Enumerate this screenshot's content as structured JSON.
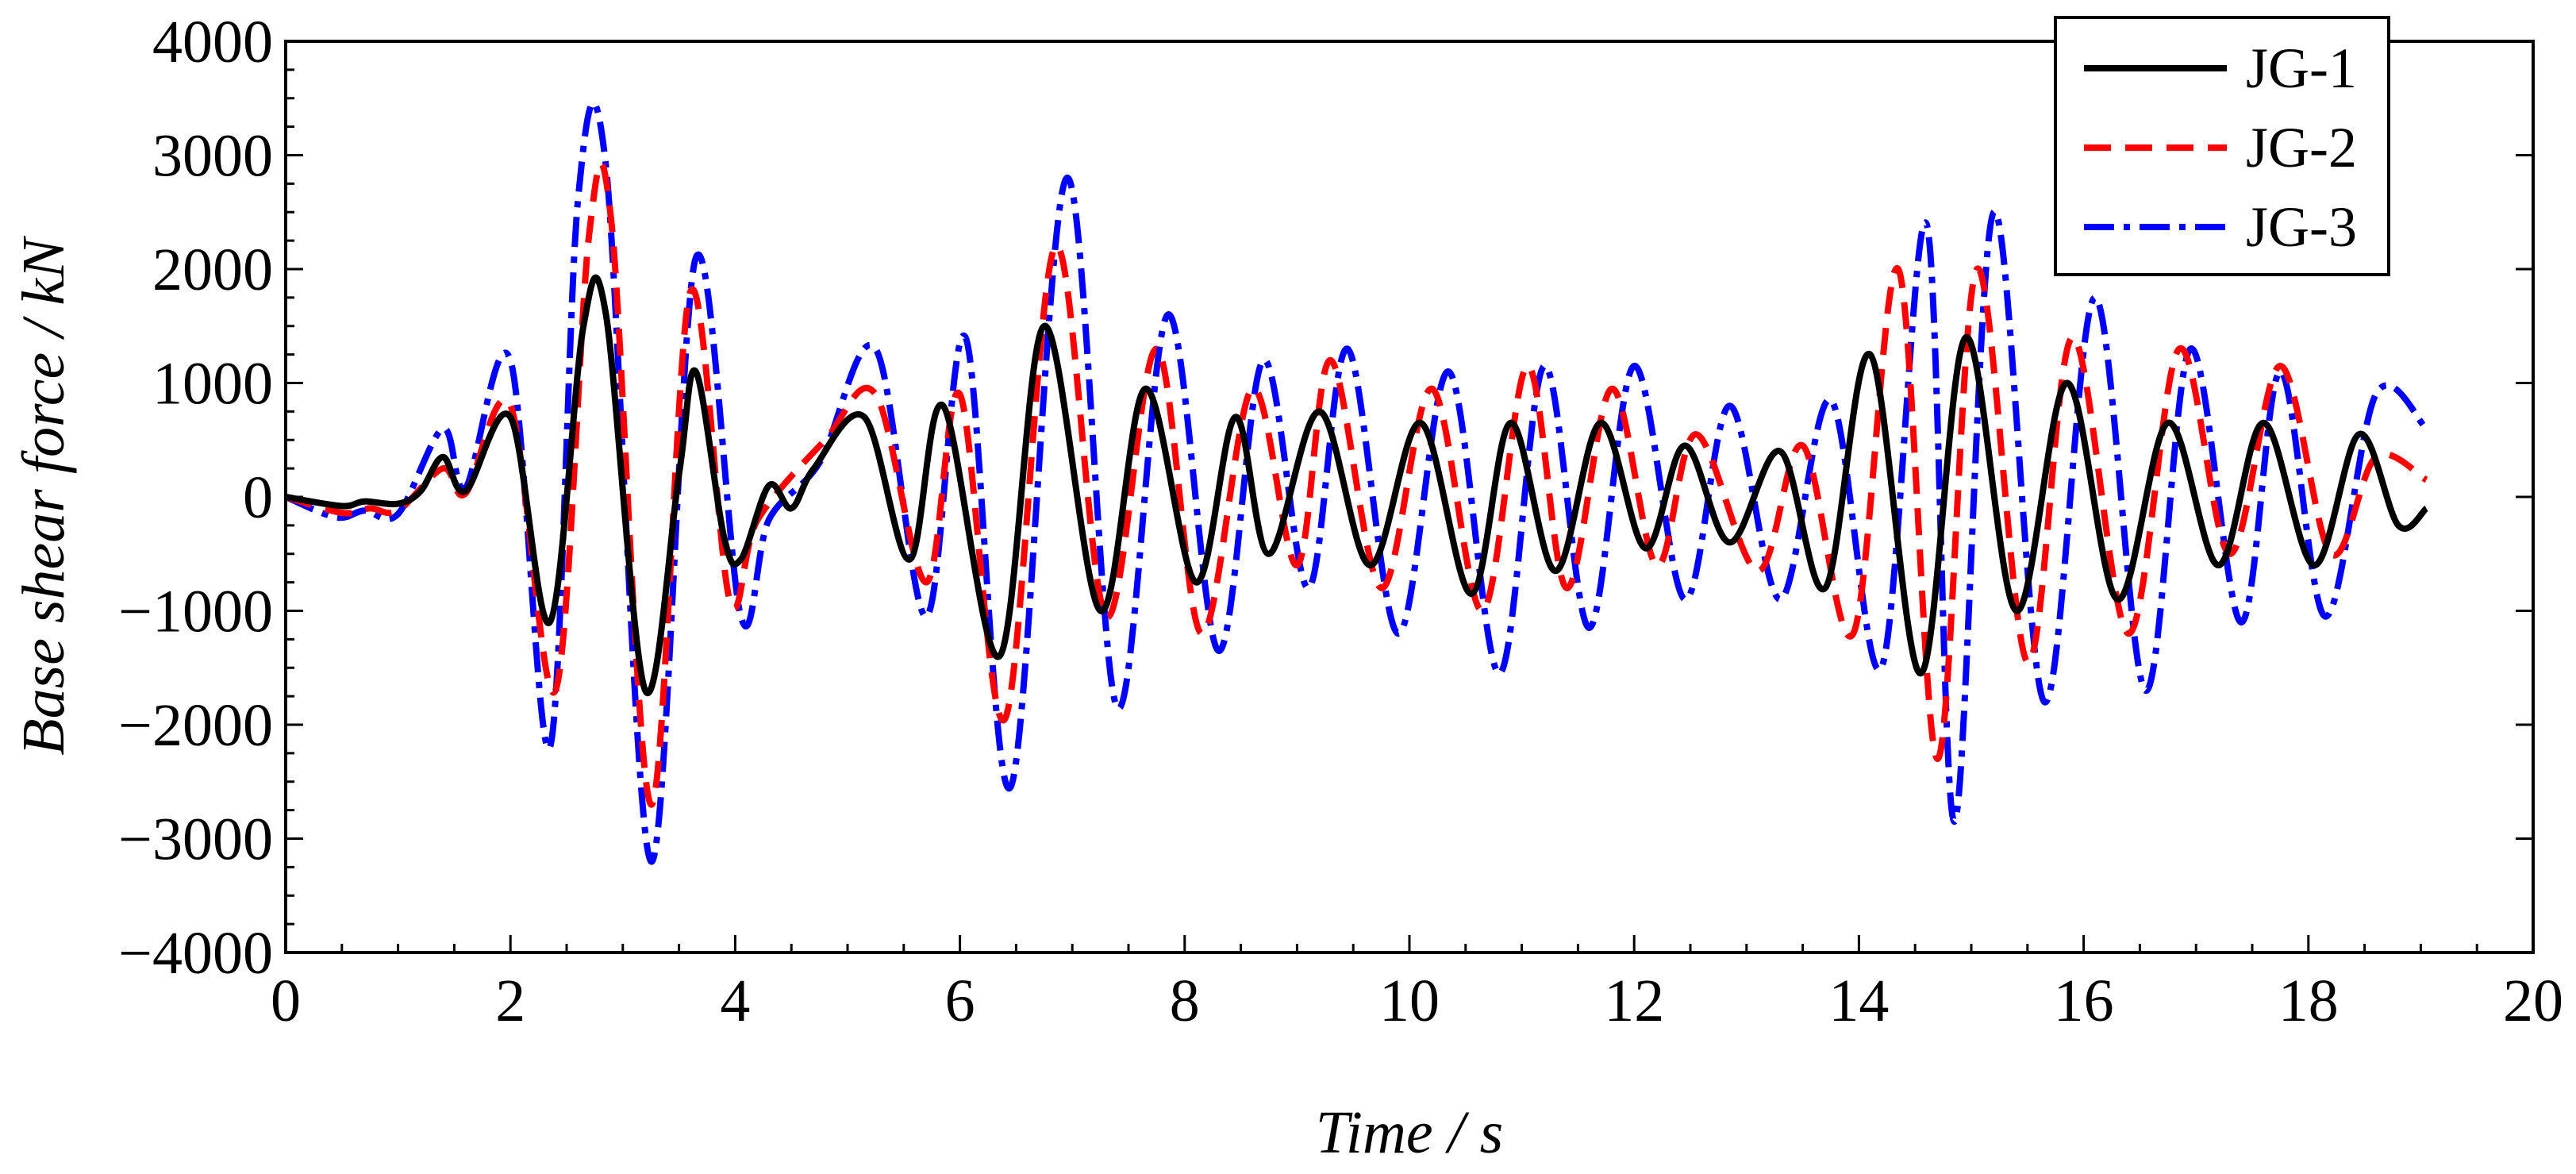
{
  "chart_data": {
    "type": "line",
    "title": "",
    "xlabel": "Time / s",
    "ylabel": "Base shear force / kN",
    "xlim": [
      0,
      20
    ],
    "ylim": [
      -4000,
      4000
    ],
    "xticks": [
      0,
      2,
      4,
      6,
      8,
      10,
      12,
      14,
      16,
      18,
      20
    ],
    "yticks": [
      -4000,
      -3000,
      -2000,
      -1000,
      0,
      1000,
      2000,
      3000,
      4000
    ],
    "xtick_labels": [
      "0",
      "2",
      "4",
      "6",
      "8",
      "10",
      "12",
      "14",
      "16",
      "18",
      "20"
    ],
    "ytick_labels": [
      "−4000",
      "−3000",
      "−2000",
      "−1000",
      "0",
      "1000",
      "2000",
      "3000",
      "4000"
    ],
    "grid": false,
    "legend_position": "top-right",
    "series": [
      {
        "name": "JG-1",
        "color": "#000000",
        "dash": "solid",
        "x": [
          0,
          0.5,
          0.7,
          1.0,
          1.2,
          1.4,
          1.6,
          2.0,
          2.35,
          2.65,
          2.85,
          3.2,
          3.5,
          3.65,
          3.9,
          4.05,
          4.3,
          4.5,
          4.7,
          5.15,
          5.55,
          5.85,
          6.35,
          6.75,
          7.25,
          7.65,
          8.1,
          8.45,
          8.75,
          9.2,
          9.65,
          10.1,
          10.55,
          10.9,
          11.3,
          11.7,
          12.1,
          12.45,
          12.85,
          13.3,
          13.7,
          14.1,
          14.55,
          14.95,
          15.4,
          15.85,
          16.3,
          16.75,
          17.2,
          17.6,
          18.05,
          18.45,
          18.8,
          19.05
        ],
        "y": [
          0,
          -80,
          -40,
          -60,
          50,
          350,
          50,
          700,
          -1100,
          1500,
          1600,
          -1700,
          200,
          1100,
          -350,
          -550,
          100,
          -100,
          250,
          700,
          -550,
          800,
          -1400,
          1500,
          -1000,
          950,
          -750,
          700,
          -500,
          750,
          -600,
          650,
          -850,
          650,
          -650,
          650,
          -450,
          450,
          -400,
          400,
          -800,
          1250,
          -1550,
          1400,
          -1000,
          1000,
          -900,
          650,
          -600,
          650,
          -600,
          550,
          -250,
          -100
        ]
      },
      {
        "name": "JG-2",
        "color": "#ff0000",
        "dash": "34 18",
        "x": [
          0,
          0.5,
          0.75,
          1.0,
          1.4,
          1.6,
          2.0,
          2.4,
          2.7,
          2.9,
          3.25,
          3.6,
          3.95,
          4.2,
          4.8,
          5.25,
          5.7,
          6.0,
          6.4,
          6.85,
          7.3,
          7.75,
          8.15,
          8.6,
          9.0,
          9.3,
          9.75,
          10.2,
          10.65,
          11.05,
          11.4,
          11.8,
          12.2,
          12.55,
          13.1,
          13.5,
          13.95,
          14.35,
          14.7,
          15.05,
          15.5,
          15.9,
          16.4,
          16.85,
          17.3,
          17.75,
          18.2,
          18.6,
          19.05
        ],
        "y": [
          0,
          -140,
          -100,
          -120,
          250,
          30,
          800,
          -1700,
          2300,
          2400,
          -2700,
          1800,
          -900,
          -200,
          500,
          900,
          -750,
          900,
          -1950,
          2200,
          -1050,
          1300,
          -1200,
          950,
          -600,
          1200,
          -800,
          950,
          -1000,
          1150,
          -800,
          950,
          -600,
          550,
          -650,
          450,
          -1200,
          2000,
          -2300,
          2000,
          -1450,
          1400,
          -1200,
          1300,
          -500,
          1150,
          -500,
          350,
          150
        ]
      },
      {
        "name": "JG-3",
        "color": "#0000ff",
        "dash": "38 12 8 12",
        "x": [
          0,
          0.45,
          0.7,
          1.0,
          1.4,
          1.6,
          2.0,
          2.35,
          2.6,
          2.85,
          3.25,
          3.65,
          4.05,
          4.3,
          4.75,
          5.25,
          5.7,
          6.05,
          6.45,
          6.95,
          7.4,
          7.85,
          8.3,
          8.7,
          9.1,
          9.45,
          9.9,
          10.35,
          10.8,
          11.2,
          11.6,
          12.0,
          12.45,
          12.85,
          13.3,
          13.75,
          14.2,
          14.6,
          14.85,
          15.2,
          15.65,
          16.1,
          16.55,
          16.95,
          17.4,
          17.75,
          18.15,
          18.6,
          19.05
        ],
        "y": [
          0,
          -180,
          -120,
          -150,
          600,
          80,
          1200,
          -2200,
          2600,
          2900,
          -3200,
          2100,
          -1050,
          -200,
          300,
          1300,
          -1050,
          1400,
          -2550,
          2800,
          -1850,
          1600,
          -1350,
          1200,
          -800,
          1300,
          -1200,
          1100,
          -1550,
          1150,
          -1150,
          1150,
          -900,
          800,
          -900,
          850,
          -1500,
          2400,
          -2850,
          2500,
          -1800,
          1750,
          -1700,
          1300,
          -1100,
          1100,
          -1050,
          900,
          600
        ]
      }
    ]
  }
}
